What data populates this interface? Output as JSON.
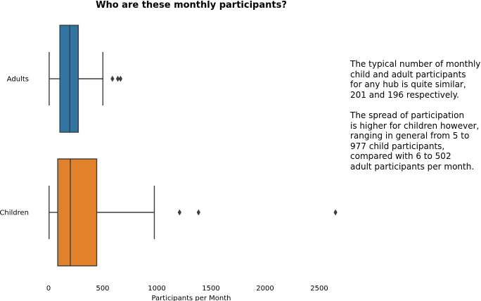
{
  "chart_data": {
    "type": "boxplot",
    "orientation": "horizontal",
    "title": "Who are these monthly participants?",
    "xlabel": "Participants per Month",
    "ylabel": "",
    "xlim": [
      -30,
      2700
    ],
    "xticks": [
      0,
      500,
      1000,
      1500,
      2000,
      2500
    ],
    "grid": false,
    "categories": [
      "Adults",
      "Children"
    ],
    "boxes": [
      {
        "category": "Adults",
        "color": "#3274a1",
        "whisker_low": 6,
        "q1": 105,
        "median": 196,
        "q3": 275,
        "whisker_high": 502,
        "outliers": [
          590,
          640,
          665
        ]
      },
      {
        "category": "Children",
        "color": "#e1812c",
        "whisker_low": 5,
        "q1": 85,
        "median": 201,
        "q3": 445,
        "whisker_high": 977,
        "outliers": [
          1210,
          1385,
          2650
        ]
      }
    ],
    "annotation": [
      [
        "The typical number of monthly",
        "child and adult participants",
        "for any hub is quite similar,",
        "201 and 196 respectively."
      ],
      [
        "The spread of participation",
        "is higher for children however,",
        "ranging in general from 5 to",
        "977 child participants,",
        "compared with 6 to 502",
        "adult participants per month."
      ]
    ]
  }
}
